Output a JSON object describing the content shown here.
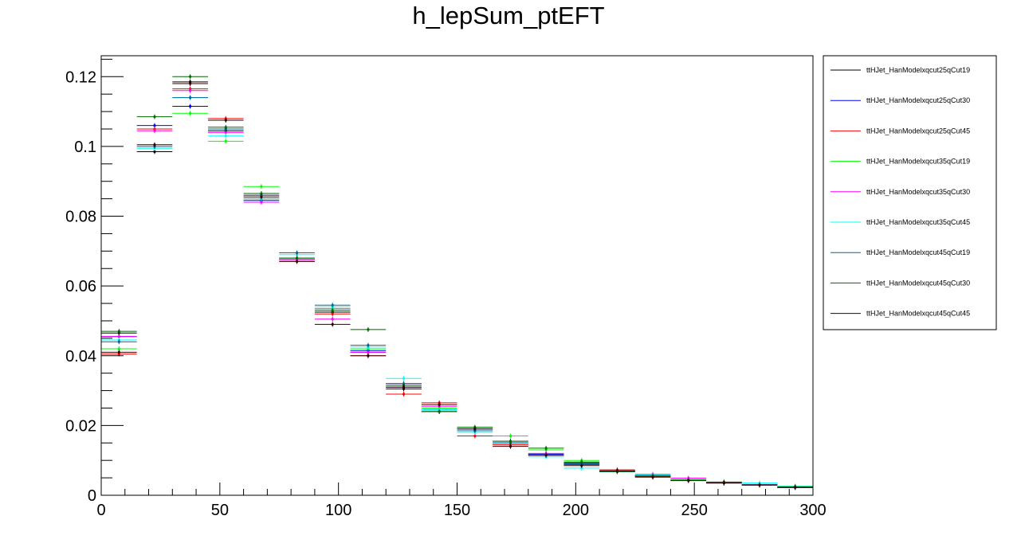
{
  "chart_data": {
    "type": "line",
    "title": "h_lepSum_ptEFT",
    "xlabel": "",
    "ylabel": "",
    "xlim": [
      0,
      300
    ],
    "ylim": [
      0,
      0.126
    ],
    "x_ticks": [
      "0",
      "50",
      "100",
      "150",
      "200",
      "250",
      "300"
    ],
    "y_ticks": [
      "0",
      "0.02",
      "0.04",
      "0.06",
      "0.08",
      "0.1",
      "0.12"
    ],
    "grid": false,
    "legend_position": "right",
    "bin_edges": [
      0,
      15,
      30,
      45,
      60,
      75,
      90,
      105,
      120,
      135,
      150,
      165,
      180,
      195,
      210,
      225,
      240,
      255,
      270,
      285,
      300
    ],
    "series": [
      {
        "name": "ttHJet_HanModelxqcut25qCut19",
        "color": "#000000",
        "values": [
          0.0465,
          0.0985,
          0.1185,
          0.1045,
          0.085,
          0.0675,
          0.0525,
          0.041,
          0.0305,
          0.024,
          0.0185,
          0.0145,
          0.0115,
          0.009,
          0.0068,
          0.0055,
          0.0043,
          0.0035,
          0.003,
          0.0022
        ]
      },
      {
        "name": "ttHJet_HanModelxqcut25qCut30",
        "color": "#0000ff",
        "values": [
          0.0455,
          0.106,
          0.1115,
          0.105,
          0.0845,
          0.068,
          0.0535,
          0.0415,
          0.031,
          0.0245,
          0.019,
          0.015,
          0.0118,
          0.0092,
          0.0068,
          0.0056,
          0.0044,
          0.0036,
          0.003,
          0.0023
        ]
      },
      {
        "name": "ttHJet_HanModelxqcut25qCut45",
        "color": "#ff0000",
        "values": [
          0.0405,
          0.105,
          0.1165,
          0.108,
          0.086,
          0.0675,
          0.052,
          0.04,
          0.029,
          0.0265,
          0.017,
          0.0145,
          0.0115,
          0.0088,
          0.0073,
          0.0053,
          0.0044,
          0.0036,
          0.0029,
          0.0024
        ]
      },
      {
        "name": "ttHJet_HanModelxqcut35qCut19",
        "color": "#00ff00",
        "values": [
          0.042,
          0.0995,
          0.1095,
          0.1015,
          0.0885,
          0.068,
          0.0535,
          0.042,
          0.0315,
          0.025,
          0.0195,
          0.017,
          0.013,
          0.01,
          0.007,
          0.0056,
          0.0045,
          0.0036,
          0.0031,
          0.0026
        ]
      },
      {
        "name": "ttHJet_HanModelxqcut35qCut30",
        "color": "#ff00ff",
        "values": [
          0.0455,
          0.1045,
          0.116,
          0.104,
          0.084,
          0.0675,
          0.0505,
          0.041,
          0.032,
          0.0255,
          0.0185,
          0.0155,
          0.012,
          0.0095,
          0.007,
          0.006,
          0.0049,
          0.0037,
          0.0031,
          0.0024
        ]
      },
      {
        "name": "ttHJet_HanModelxqcut35qCut45",
        "color": "#00ffff",
        "values": [
          0.0445,
          0.0995,
          0.114,
          0.103,
          0.085,
          0.069,
          0.054,
          0.0425,
          0.0335,
          0.0245,
          0.018,
          0.015,
          0.011,
          0.0078,
          0.0068,
          0.0058,
          0.0043,
          0.0035,
          0.0035,
          0.0025
        ]
      },
      {
        "name": "ttHJet_HanModelxqcut45qCut19",
        "color": "#006699",
        "values": [
          0.044,
          0.1,
          0.114,
          0.105,
          0.086,
          0.0695,
          0.0545,
          0.043,
          0.032,
          0.024,
          0.0185,
          0.015,
          0.0115,
          0.009,
          0.0068,
          0.0056,
          0.0043,
          0.0035,
          0.003,
          0.0023
        ]
      },
      {
        "name": "ttHJet_HanModelxqcut45qCut30",
        "color": "#006600",
        "values": [
          0.047,
          0.1085,
          0.12,
          0.1055,
          0.0865,
          0.068,
          0.053,
          0.0475,
          0.0315,
          0.024,
          0.0195,
          0.0155,
          0.0135,
          0.0095,
          0.0068,
          0.0055,
          0.0043,
          0.0038,
          0.003,
          0.0024
        ]
      },
      {
        "name": "ttHJet_HanModelxqcut45qCut45",
        "color": "#330000",
        "values": [
          0.041,
          0.1005,
          0.118,
          0.1075,
          0.0855,
          0.067,
          0.049,
          0.04,
          0.031,
          0.026,
          0.019,
          0.014,
          0.0115,
          0.0085,
          0.007,
          0.0052,
          0.0042,
          0.0035,
          0.0029,
          0.0023
        ]
      }
    ]
  }
}
